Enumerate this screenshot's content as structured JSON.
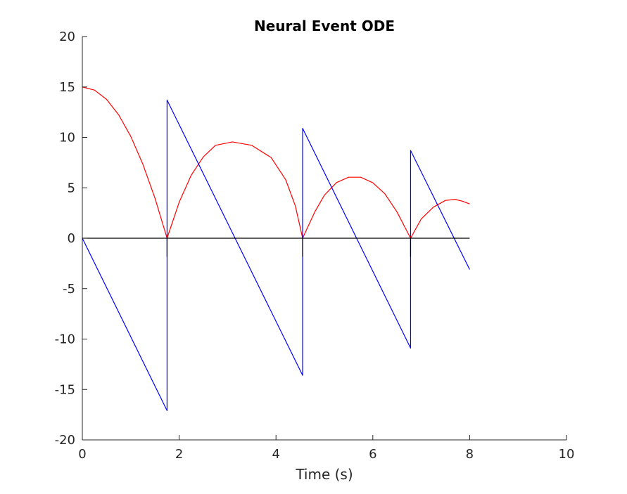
{
  "chart_data": {
    "type": "line",
    "title": "Neural Event ODE",
    "xlabel": "Time (s)",
    "ylabel": "",
    "xlim": [
      0,
      10
    ],
    "ylim": [
      -20,
      20
    ],
    "xticks": [
      0,
      2,
      4,
      6,
      8,
      10
    ],
    "yticks": [
      -20,
      -15,
      -10,
      -5,
      0,
      5,
      10,
      15,
      20
    ],
    "grid": false,
    "series": [
      {
        "color": "#ff0000",
        "points": [
          [
            0,
            15
          ],
          [
            0.25,
            14.69
          ],
          [
            0.5,
            13.77
          ],
          [
            0.75,
            12.24
          ],
          [
            1.0,
            10.1
          ],
          [
            1.25,
            7.34
          ],
          [
            1.5,
            3.98
          ],
          [
            1.75,
            0
          ],
          [
            2.0,
            3.57
          ],
          [
            2.25,
            6.26
          ],
          [
            2.5,
            8.07
          ],
          [
            2.75,
            9.21
          ],
          [
            3.1,
            9.55
          ],
          [
            3.5,
            9.21
          ],
          [
            3.9,
            8.0
          ],
          [
            4.2,
            5.8
          ],
          [
            4.4,
            3.2
          ],
          [
            4.55,
            0
          ],
          [
            4.8,
            2.6
          ],
          [
            5.0,
            4.27
          ],
          [
            5.25,
            5.52
          ],
          [
            5.5,
            6.05
          ],
          [
            5.75,
            6.05
          ],
          [
            6.0,
            5.5
          ],
          [
            6.25,
            4.4
          ],
          [
            6.5,
            2.6
          ],
          [
            6.78,
            0
          ],
          [
            7.0,
            1.91
          ],
          [
            7.25,
            3.08
          ],
          [
            7.5,
            3.75
          ],
          [
            7.7,
            3.85
          ],
          [
            7.85,
            3.67
          ],
          [
            8.0,
            3.4
          ]
        ]
      },
      {
        "color": "#0000ff",
        "points": [
          [
            0,
            0
          ],
          [
            1.75,
            -17.1
          ],
          [
            1.75,
            13.7
          ],
          [
            4.55,
            -13.6
          ],
          [
            4.55,
            10.9
          ],
          [
            6.78,
            -10.9
          ],
          [
            6.78,
            8.7
          ],
          [
            8.0,
            -3.1
          ]
        ]
      },
      {
        "color": "#000000",
        "points": [
          [
            0,
            0
          ],
          [
            1.75,
            0
          ],
          [
            1.75,
            -1.8
          ],
          [
            1.75,
            0
          ],
          [
            4.55,
            0
          ],
          [
            4.55,
            -1.8
          ],
          [
            4.55,
            0
          ],
          [
            6.78,
            0
          ],
          [
            6.78,
            -1.8
          ],
          [
            6.78,
            0
          ],
          [
            8.0,
            0
          ]
        ]
      }
    ]
  }
}
